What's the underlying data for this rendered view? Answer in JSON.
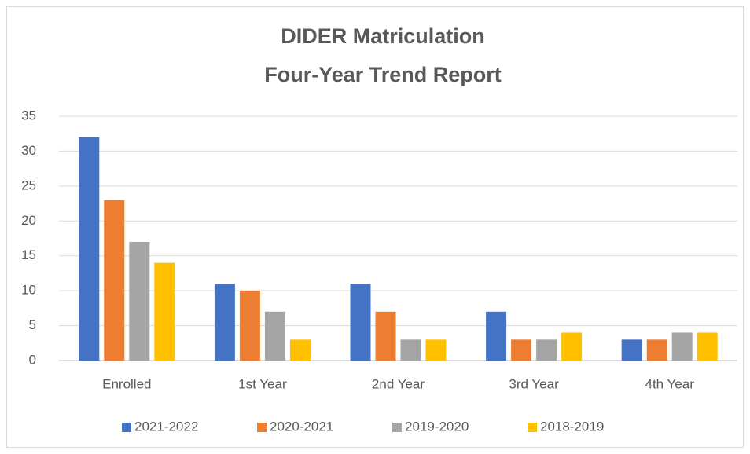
{
  "chart_data": {
    "type": "bar",
    "title": [
      "DIDER Matriculation",
      "Four-Year Trend Report"
    ],
    "categories": [
      "Enrolled",
      "1st Year",
      "2nd Year",
      "3rd Year",
      "4th Year"
    ],
    "series": [
      {
        "name": "2021-2022",
        "color": "#4472c4",
        "values": [
          32,
          11,
          11,
          7,
          3
        ]
      },
      {
        "name": "2020-2021",
        "color": "#ed7d31",
        "values": [
          23,
          10,
          7,
          3,
          3
        ]
      },
      {
        "name": "2019-2020",
        "color": "#a5a5a5",
        "values": [
          17,
          7,
          3,
          3,
          4
        ]
      },
      {
        "name": "2018-2019",
        "color": "#ffc000",
        "values": [
          14,
          3,
          3,
          4,
          4
        ]
      }
    ],
    "ylim": [
      0,
      35
    ],
    "yticks": [
      0,
      5,
      10,
      15,
      20,
      25,
      30,
      35
    ],
    "grid": true,
    "legend": "bottom"
  }
}
